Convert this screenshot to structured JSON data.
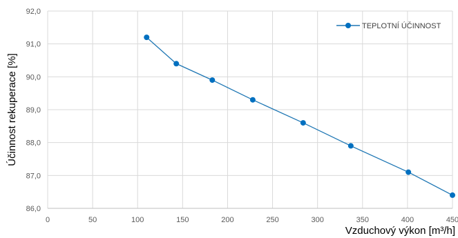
{
  "chart_data": {
    "type": "line",
    "xlabel": "Vzduchový výkon [m³/h]",
    "ylabel": "Účinnost rekuperace [%]",
    "xlim": [
      0,
      450
    ],
    "ylim": [
      86.0,
      92.0
    ],
    "x_ticks": [
      "0",
      "50",
      "100",
      "150",
      "200",
      "250",
      "300",
      "350",
      "400",
      "450"
    ],
    "y_ticks": [
      "86,0",
      "87,0",
      "88,0",
      "89,0",
      "90,0",
      "91,0",
      "92,0"
    ],
    "grid": true,
    "legend_position": "top-right",
    "series": [
      {
        "name": "TEPLOTNÍ ÚČINNOST",
        "color": "#1f77b4",
        "marker_color": "#0070c0",
        "x": [
          110,
          143,
          183,
          228,
          284,
          337,
          401,
          450
        ],
        "y": [
          91.2,
          90.4,
          89.9,
          89.3,
          88.6,
          87.9,
          87.1,
          86.4
        ]
      }
    ]
  }
}
